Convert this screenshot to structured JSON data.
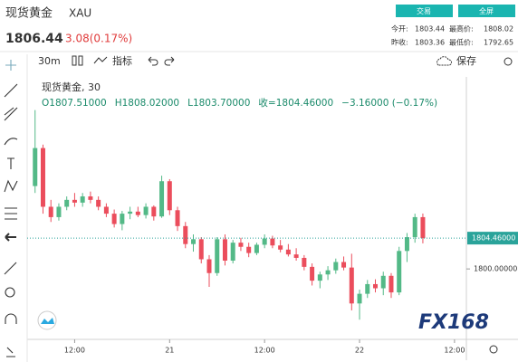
{
  "header": {
    "title": "现货黄金",
    "symbol": "XAU",
    "price": "1806.44",
    "change": "3.08(0.17%)",
    "buttons": [
      "交易",
      "全屏"
    ],
    "stats": [
      [
        "今开:",
        "1803.44"
      ],
      [
        "最高价:",
        "1808.02"
      ],
      [
        "昨收:",
        "1803.36"
      ],
      [
        "最低价:",
        "1792.65"
      ]
    ]
  },
  "toolbar": {
    "interval": "30m",
    "indicators": "指标",
    "save": "保存"
  },
  "chart_data": {
    "type": "candlestick",
    "legend_symbol": "现货黄金, 30",
    "legend_values": [
      "O1807.51000",
      "H1808.02000",
      "L1803.70000",
      "收=1804.46000",
      "−3.16000 (−0.17%)"
    ],
    "watermark": "FX168",
    "up_color": "#53b987",
    "down_color": "#eb4d5c",
    "x": [
      7,
      8,
      9,
      10,
      11,
      12,
      13,
      14,
      15,
      16,
      17,
      18,
      19,
      20,
      21,
      22,
      23,
      24,
      25,
      26,
      27,
      28,
      29,
      30,
      31,
      32,
      33,
      34,
      35,
      36,
      37,
      38,
      39,
      40,
      41,
      42,
      43,
      44,
      45,
      46,
      47,
      48,
      49,
      50,
      51,
      52,
      53,
      54,
      55,
      56
    ],
    "open": [
      1812,
      1817.5,
      1809,
      1807.5,
      1809,
      1810,
      1809.6,
      1810.5,
      1810,
      1809,
      1808,
      1806.5,
      1808,
      1808.3,
      1807.8,
      1809,
      1807.6,
      1812.7,
      1808.5,
      1806.2,
      1803.6,
      1804.3,
      1801.4,
      1799.4,
      1804.3,
      1801.2,
      1803.8,
      1803.2,
      1802.3,
      1803.5,
      1804.4,
      1803.4,
      1802.8,
      1802.1,
      1801.6,
      1800.3,
      1798.3,
      1799.2,
      1799.8,
      1801,
      1800.2,
      1795,
      1796.4,
      1797.8,
      1797.2,
      1799,
      1796.6,
      1802.6,
      1804.6,
      1807.5
    ],
    "high": [
      1823,
      1818,
      1810,
      1809.5,
      1810.5,
      1811,
      1811,
      1811.2,
      1810.5,
      1809.5,
      1808.6,
      1808.4,
      1809,
      1809,
      1809.5,
      1809.2,
      1813.5,
      1813,
      1809,
      1806.8,
      1805,
      1804.6,
      1802,
      1804.6,
      1805,
      1804.2,
      1804.5,
      1803.8,
      1803.8,
      1805,
      1804.8,
      1804.2,
      1803.6,
      1803,
      1802,
      1800.8,
      1799.6,
      1800.4,
      1801.5,
      1801.8,
      1802.2,
      1797,
      1798.4,
      1798.5,
      1799.6,
      1799.4,
      1803.2,
      1805.2,
      1808,
      1808.02
    ],
    "low": [
      1811,
      1808,
      1806.8,
      1807,
      1808.5,
      1809,
      1809,
      1809.5,
      1808.5,
      1807.5,
      1806,
      1805.6,
      1807.2,
      1807.5,
      1807.3,
      1807,
      1807.4,
      1807.8,
      1805.5,
      1803,
      1802.5,
      1800.8,
      1797.4,
      1799,
      1800.5,
      1800.8,
      1802.6,
      1801.7,
      1802,
      1803,
      1803,
      1802.4,
      1801.8,
      1801.2,
      1799.8,
      1797.6,
      1797.2,
      1798.4,
      1799.3,
      1799.8,
      1794,
      1792.65,
      1795.8,
      1796.6,
      1796.2,
      1795.8,
      1796.2,
      1801,
      1803.8,
      1803.7
    ],
    "close": [
      1817.5,
      1809,
      1807.5,
      1809,
      1810,
      1809.6,
      1810.5,
      1810,
      1809,
      1808,
      1806.5,
      1808,
      1808.3,
      1807.8,
      1809,
      1807.6,
      1812.7,
      1808.5,
      1806.2,
      1803.6,
      1804.3,
      1801.4,
      1799.4,
      1804.3,
      1801.2,
      1803.8,
      1803.2,
      1802.3,
      1803.5,
      1804.4,
      1803.4,
      1802.8,
      1802.1,
      1801.6,
      1800.3,
      1798.3,
      1799.2,
      1799.8,
      1801,
      1800.2,
      1795,
      1796.4,
      1797.8,
      1797.2,
      1799,
      1796.6,
      1802.6,
      1804.6,
      1807.5,
      1804.46
    ],
    "xlim": [
      6,
      61.5
    ],
    "xticks": [
      {
        "value": 12,
        "label": "12:00"
      },
      {
        "value": 24,
        "label": "21"
      },
      {
        "value": 36,
        "label": "12:00"
      },
      {
        "value": 48,
        "label": "22"
      },
      {
        "value": 60,
        "label": "12:00"
      }
    ],
    "ylim": [
      1789.8,
      1827.8
    ],
    "yticks": [
      {
        "value": 1800,
        "label": "1800.00000"
      }
    ],
    "last_price": {
      "value": 1804.46,
      "label": "1804.46000"
    },
    "grid": false
  }
}
